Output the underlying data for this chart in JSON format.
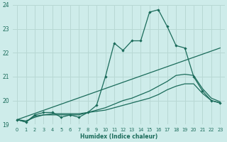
{
  "xlabel": "Humidex (Indice chaleur)",
  "bg_color": "#ceecea",
  "grid_color": "#b8d8d4",
  "line_color": "#1a6b5a",
  "xlim": [
    -0.5,
    23.5
  ],
  "ylim": [
    19.0,
    24.0
  ],
  "yticks": [
    19,
    20,
    21,
    22,
    23,
    24
  ],
  "xticks": [
    0,
    1,
    2,
    3,
    4,
    5,
    6,
    7,
    8,
    9,
    10,
    11,
    12,
    13,
    14,
    15,
    16,
    17,
    18,
    19,
    20,
    21,
    22,
    23
  ],
  "series1_x": [
    0,
    1,
    2,
    3,
    4,
    5,
    6,
    7,
    8,
    9,
    10,
    11,
    12,
    13,
    14,
    15,
    16,
    17,
    18,
    19,
    20,
    21,
    22,
    23
  ],
  "series1_y": [
    19.2,
    19.1,
    19.4,
    19.5,
    19.5,
    19.3,
    19.4,
    19.3,
    19.5,
    19.8,
    21.0,
    22.4,
    22.1,
    22.5,
    22.5,
    23.7,
    23.8,
    23.1,
    22.3,
    22.2,
    21.0,
    20.4,
    20.0,
    19.9
  ],
  "series2_x": [
    0,
    23
  ],
  "series2_y": [
    19.2,
    22.2
  ],
  "series3_x": [
    0,
    1,
    2,
    3,
    4,
    5,
    6,
    7,
    8,
    9,
    10,
    11,
    12,
    13,
    14,
    15,
    16,
    17,
    18,
    19,
    20,
    21,
    22,
    23
  ],
  "series3_y": [
    19.2,
    19.15,
    19.3,
    19.4,
    19.4,
    19.4,
    19.4,
    19.4,
    19.5,
    19.6,
    19.7,
    19.85,
    20.0,
    20.1,
    20.25,
    20.4,
    20.6,
    20.8,
    21.05,
    21.1,
    21.05,
    20.5,
    20.1,
    19.95
  ],
  "series4_x": [
    0,
    1,
    2,
    3,
    4,
    5,
    6,
    7,
    8,
    9,
    10,
    11,
    12,
    13,
    14,
    15,
    16,
    17,
    18,
    19,
    20,
    21,
    22,
    23
  ],
  "series4_y": [
    19.2,
    19.1,
    19.35,
    19.4,
    19.45,
    19.45,
    19.45,
    19.45,
    19.5,
    19.55,
    19.6,
    19.7,
    19.8,
    19.9,
    20.0,
    20.1,
    20.25,
    20.45,
    20.6,
    20.7,
    20.7,
    20.3,
    20.0,
    19.9
  ]
}
